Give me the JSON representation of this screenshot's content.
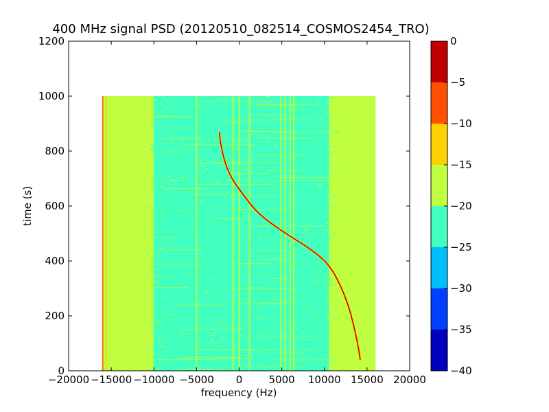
{
  "chart_data": {
    "type": "heatmap",
    "title": "400 MHz signal PSD (20120510_082514_COSMOS2454_TRO)",
    "xlabel": "frequency (Hz)",
    "ylabel": "time (s)",
    "xlim": [
      -20000,
      20000
    ],
    "ylim": [
      0,
      1200
    ],
    "xticks": [
      -20000,
      -15000,
      -10000,
      -5000,
      0,
      5000,
      10000,
      15000,
      20000
    ],
    "yticks": [
      0,
      200,
      400,
      600,
      800,
      1000,
      1200
    ],
    "x_tick_labels": [
      "−20000",
      "−15000",
      "−10000",
      "−5000",
      "0",
      "5000",
      "10000",
      "15000",
      "20000"
    ],
    "y_tick_labels": [
      "0",
      "200",
      "400",
      "600",
      "800",
      "1000",
      "1200"
    ],
    "data_extent": {
      "x": [
        -16000,
        16000
      ],
      "y": [
        0,
        1000
      ]
    },
    "colorbar": {
      "range": [
        -40,
        0
      ],
      "ticks": [
        0,
        -5,
        -10,
        -15,
        -20,
        -25,
        -30,
        -35,
        -40
      ],
      "tick_labels": [
        "0",
        "−5",
        "−10",
        "−15",
        "−20",
        "−25",
        "−30",
        "−35",
        "−40"
      ],
      "levels": [
        {
          "from": -40,
          "to": -35,
          "color": "#0000bf"
        },
        {
          "from": -35,
          "to": -30,
          "color": "#0040ff"
        },
        {
          "from": -30,
          "to": -25,
          "color": "#00bfff"
        },
        {
          "from": -25,
          "to": -20,
          "color": "#40ffbf"
        },
        {
          "from": -20,
          "to": -15,
          "color": "#bfff40"
        },
        {
          "from": -15,
          "to": -10,
          "color": "#ffd000"
        },
        {
          "from": -10,
          "to": -5,
          "color": "#ff5000"
        },
        {
          "from": -5,
          "to": 0,
          "color": "#bf0000"
        }
      ]
    },
    "background_level": -17.5,
    "noise_region": {
      "x": [
        -11000,
        11500
      ],
      "level": -22.5
    },
    "vertical_lines": [
      {
        "x": -16000,
        "level": -7.5
      },
      {
        "x": -15600,
        "level": -12.5
      },
      {
        "x": -10500,
        "level": -17.5
      },
      {
        "x": -5000,
        "level": -17.5
      },
      {
        "x": -700,
        "level": -17.5
      },
      {
        "x": 0,
        "level": -17.5
      },
      {
        "x": 1200,
        "level": -17.5
      },
      {
        "x": 4900,
        "level": -17.5
      },
      {
        "x": 5400,
        "level": -17.5
      },
      {
        "x": 6000,
        "level": -17.5
      },
      {
        "x": 6400,
        "level": -17.5
      }
    ],
    "doppler_track": {
      "level": -2.5,
      "points": [
        [
          14200,
          40
        ],
        [
          13900,
          100
        ],
        [
          13400,
          170
        ],
        [
          12800,
          240
        ],
        [
          11900,
          310
        ],
        [
          10700,
          380
        ],
        [
          9000,
          430
        ],
        [
          6500,
          480
        ],
        [
          4000,
          530
        ],
        [
          2000,
          580
        ],
        [
          500,
          640
        ],
        [
          -900,
          700
        ],
        [
          -1700,
          760
        ],
        [
          -2200,
          830
        ],
        [
          -2300,
          870
        ]
      ]
    }
  }
}
